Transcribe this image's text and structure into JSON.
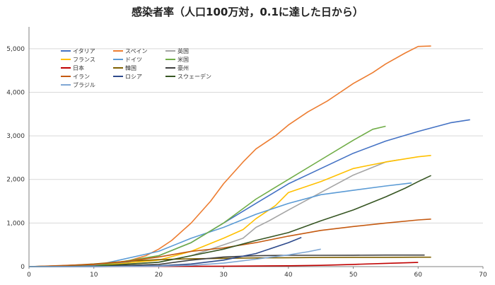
{
  "chart_data": {
    "type": "line",
    "title": "感染者率（人口100万対，0.1に達した日から）",
    "xlabel": "",
    "ylabel": "",
    "xlim": [
      0,
      70
    ],
    "ylim": [
      0,
      5500
    ],
    "x_ticks": [
      "0",
      "10",
      "20",
      "30",
      "40",
      "50",
      "60",
      "70"
    ],
    "y_ticks": [
      "0",
      "1,000",
      "2,000",
      "3,000",
      "4,000",
      "5,000"
    ],
    "grid": "horizontal",
    "legend_position": "top-left",
    "series": [
      {
        "name": "イタリア",
        "color": "#4472c4",
        "x": [
          0,
          10,
          15,
          20,
          25,
          30,
          35,
          40,
          45,
          50,
          55,
          60,
          65,
          68
        ],
        "y": [
          0,
          30,
          100,
          250,
          550,
          1000,
          1450,
          1900,
          2250,
          2600,
          2880,
          3100,
          3300,
          3370
        ]
      },
      {
        "name": "スペイン",
        "color": "#ed7d31",
        "x": [
          0,
          10,
          15,
          18,
          20,
          22,
          25,
          28,
          30,
          33,
          35,
          38,
          40,
          43,
          46,
          48,
          50,
          53,
          55,
          58,
          60,
          62
        ],
        "y": [
          0,
          40,
          120,
          250,
          400,
          600,
          1000,
          1500,
          1900,
          2400,
          2700,
          3000,
          3250,
          3550,
          3800,
          4000,
          4200,
          4450,
          4650,
          4900,
          5050,
          5060
        ]
      },
      {
        "name": "英国",
        "color": "#a5a5a5",
        "x": [
          0,
          10,
          20,
          25,
          30,
          33,
          35,
          37,
          40,
          45,
          50,
          55,
          57
        ],
        "y": [
          0,
          10,
          100,
          250,
          500,
          650,
          900,
          1050,
          1300,
          1700,
          2100,
          2400,
          2450
        ]
      },
      {
        "name": "フランス",
        "color": "#ffc000",
        "x": [
          0,
          10,
          20,
          25,
          30,
          33,
          35,
          38,
          40,
          45,
          50,
          55,
          60,
          62
        ],
        "y": [
          0,
          15,
          150,
          350,
          650,
          850,
          1100,
          1400,
          1700,
          1950,
          2250,
          2400,
          2520,
          2550
        ]
      },
      {
        "name": "ドイツ",
        "color": "#5b9bd5",
        "x": [
          0,
          10,
          20,
          25,
          30,
          35,
          40,
          45,
          50,
          55,
          59
        ],
        "y": [
          0,
          20,
          350,
          650,
          900,
          1200,
          1450,
          1650,
          1750,
          1850,
          1920
        ]
      },
      {
        "name": "米国",
        "color": "#70ad47",
        "x": [
          0,
          10,
          20,
          25,
          30,
          35,
          40,
          45,
          50,
          53,
          55
        ],
        "y": [
          0,
          10,
          250,
          550,
          1000,
          1550,
          2000,
          2450,
          2900,
          3150,
          3220
        ]
      },
      {
        "name": "日本",
        "color": "#c00000",
        "x": [
          0,
          10,
          20,
          30,
          40,
          45,
          50,
          55,
          60
        ],
        "y": [
          0,
          2,
          5,
          10,
          20,
          30,
          50,
          75,
          95
        ]
      },
      {
        "name": "韓国",
        "color": "#7f6000",
        "x": [
          0,
          5,
          10,
          15,
          20,
          25,
          30,
          35,
          40,
          45,
          50,
          55,
          60,
          62
        ],
        "y": [
          0,
          20,
          60,
          120,
          160,
          180,
          190,
          200,
          205,
          210,
          212,
          213,
          215,
          215
        ]
      },
      {
        "name": "豪州",
        "color": "#404040",
        "x": [
          0,
          10,
          20,
          25,
          30,
          35,
          40,
          45,
          50,
          55,
          60,
          61
        ],
        "y": [
          0,
          5,
          50,
          150,
          220,
          250,
          260,
          260,
          262,
          264,
          265,
          265
        ]
      },
      {
        "name": "イラン",
        "color": "#c55a11",
        "x": [
          0,
          10,
          15,
          20,
          25,
          30,
          35,
          40,
          45,
          50,
          55,
          60,
          62
        ],
        "y": [
          0,
          50,
          120,
          220,
          350,
          430,
          550,
          700,
          830,
          920,
          1000,
          1070,
          1090
        ]
      },
      {
        "name": "ロシア",
        "color": "#2e4a8c",
        "x": [
          0,
          10,
          20,
          25,
          30,
          35,
          40,
          42
        ],
        "y": [
          0,
          2,
          20,
          60,
          150,
          300,
          550,
          670
        ]
      },
      {
        "name": "スウェーデン",
        "color": "#375623",
        "x": [
          0,
          10,
          20,
          25,
          30,
          35,
          40,
          45,
          50,
          55,
          58,
          60,
          62
        ],
        "y": [
          0,
          10,
          100,
          250,
          400,
          600,
          780,
          1050,
          1300,
          1600,
          1800,
          1950,
          2090
        ]
      },
      {
        "name": "ブラジル",
        "color": "#7fa7d4",
        "x": [
          0,
          10,
          20,
          25,
          30,
          35,
          40,
          43,
          45
        ],
        "y": [
          0,
          1,
          10,
          30,
          80,
          170,
          270,
          340,
          400
        ]
      }
    ]
  }
}
